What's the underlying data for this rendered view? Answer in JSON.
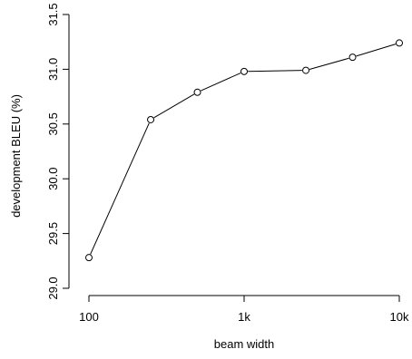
{
  "chart_data": {
    "type": "line",
    "title": "",
    "xlabel": "beam width",
    "ylabel": "development BLEU (%)",
    "x_scale": "log",
    "xlim": [
      100,
      10000
    ],
    "ylim": [
      29.0,
      31.5
    ],
    "x_ticks": [
      {
        "value": 100,
        "label": "100"
      },
      {
        "value": 1000,
        "label": "1k"
      },
      {
        "value": 10000,
        "label": "10k"
      }
    ],
    "y_ticks": [
      {
        "value": 29.0,
        "label": "29.0"
      },
      {
        "value": 29.5,
        "label": "29.5"
      },
      {
        "value": 30.0,
        "label": "30.0"
      },
      {
        "value": 30.5,
        "label": "30.5"
      },
      {
        "value": 31.0,
        "label": "31.0"
      },
      {
        "value": 31.5,
        "label": "31.5"
      }
    ],
    "grid": false,
    "legend": "none",
    "marker": "open-circle",
    "line_color": "#000000",
    "series": [
      {
        "x": [
          100,
          250,
          500,
          1000,
          2500,
          5000,
          10000
        ],
        "y": [
          29.28,
          30.54,
          30.79,
          30.98,
          30.99,
          31.11,
          31.24
        ]
      }
    ]
  }
}
